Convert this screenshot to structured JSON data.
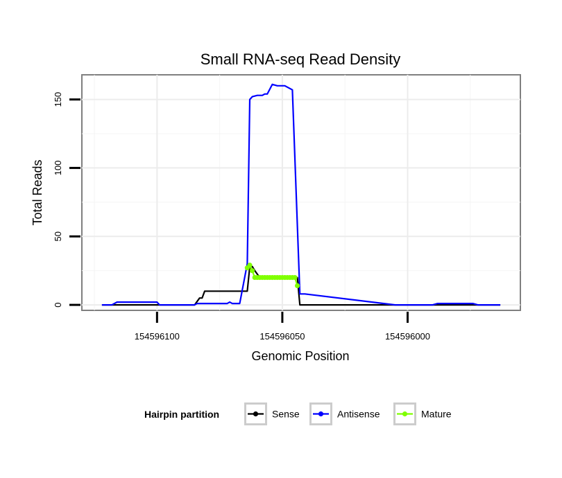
{
  "chart_data": {
    "type": "line",
    "title": "Small RNA-seq Read Density",
    "xlabel": "Genomic Position",
    "ylabel": "Total Reads",
    "x_reversed": true,
    "xlim": [
      154596130,
      154595955
    ],
    "ylim": [
      -4,
      168
    ],
    "x_ticks": [
      154596100,
      154596050,
      154596000
    ],
    "x_tick_labels": [
      "154596100",
      "154596050",
      "154596000"
    ],
    "y_ticks": [
      0,
      50,
      100,
      150
    ],
    "y_tick_labels": [
      "0",
      "50",
      "100",
      "150"
    ],
    "grid": true,
    "legend": {
      "title": "Hairpin partition",
      "position": "bottom",
      "entries": [
        "Sense",
        "Antisense",
        "Mature"
      ]
    },
    "series": [
      {
        "name": "Sense",
        "color": "#000000",
        "markers": false,
        "x": [
          154596122,
          154596085,
          154596083,
          154596082,
          154596081,
          154596070,
          154596064,
          154596063,
          154596062,
          154596061,
          154596059,
          154596058,
          154596057,
          154596056,
          154596055,
          154596054,
          154596053,
          154596052,
          154596051,
          154596050,
          154596049,
          154596048,
          154596047,
          154596046,
          154596045,
          154596044,
          154596043,
          154595963
        ],
        "y": [
          0,
          0,
          5,
          5,
          10,
          10,
          10,
          28,
          28,
          25,
          20,
          20,
          20,
          20,
          20,
          20,
          20,
          20,
          20,
          20,
          20,
          20,
          20,
          20,
          20,
          20,
          0,
          0
        ]
      },
      {
        "name": "Antisense",
        "color": "#0000ff",
        "markers": false,
        "x": [
          154596122,
          154596118,
          154596116,
          154596100,
          154596099,
          154596085,
          154596084,
          154596072,
          154596071,
          154596070,
          154596067,
          154596064,
          154596063,
          154596062,
          154596060,
          154596058,
          154596057,
          154596056,
          154596054,
          154596052,
          154596051,
          154596050,
          154596049,
          154596046,
          154596043,
          154596042,
          154596041,
          154596005,
          154595990,
          154595988,
          154595974,
          154595972,
          154595963
        ],
        "y": [
          0,
          0,
          2,
          2,
          0,
          0,
          1,
          1,
          2,
          1,
          1,
          30,
          150,
          152,
          153,
          153,
          154,
          154,
          161,
          160,
          160,
          160,
          160,
          157,
          8,
          8,
          8,
          0,
          0,
          1,
          1,
          0,
          0
        ]
      },
      {
        "name": "Mature",
        "color": "#7fff00",
        "markers": true,
        "x": [
          154596064,
          154596063,
          154596062,
          154596061,
          154596060,
          154596059,
          154596058,
          154596057,
          154596056,
          154596055,
          154596054,
          154596053,
          154596052,
          154596051,
          154596050,
          154596049,
          154596048,
          154596047,
          154596046,
          154596045,
          154596044
        ],
        "y": [
          27,
          29,
          25,
          20,
          20,
          20,
          20,
          20,
          20,
          20,
          20,
          20,
          20,
          20,
          20,
          20,
          20,
          20,
          20,
          20,
          14
        ]
      }
    ]
  }
}
